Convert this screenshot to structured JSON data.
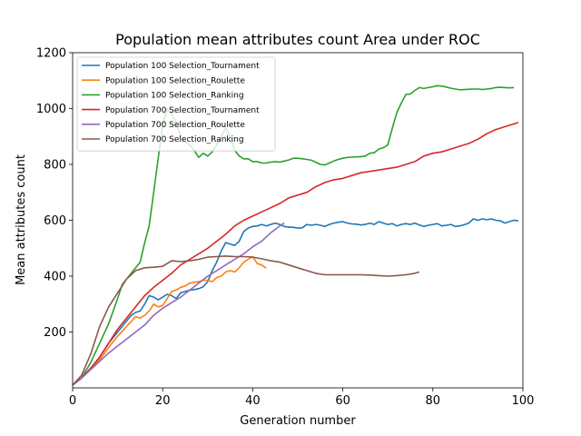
{
  "chart_data": {
    "type": "line",
    "title": "Population mean attributes count Area under ROC",
    "xlabel": "Generation number",
    "ylabel": "Mean attributes count",
    "xlim": [
      0,
      100
    ],
    "ylim": [
      0,
      1200
    ],
    "xticks": [
      0,
      20,
      40,
      60,
      80,
      100
    ],
    "yticks": [
      200,
      400,
      600,
      800,
      1000,
      1200
    ],
    "legend_position": "top-left",
    "grid": false,
    "series": [
      {
        "name": "Population 100 Selection_Tournament",
        "color": "#1f77b4",
        "x": [
          0,
          2,
          4,
          6,
          8,
          10,
          12,
          13,
          14,
          15,
          16,
          17,
          18,
          19,
          20,
          21,
          22,
          23,
          24,
          25,
          26,
          27,
          28,
          29,
          30,
          31,
          32,
          33,
          34,
          35,
          36,
          37,
          38,
          39,
          40,
          41,
          42,
          43,
          44,
          45,
          46,
          47,
          48,
          49,
          50,
          51,
          52,
          53,
          54,
          55,
          56,
          57,
          58,
          59,
          60,
          61,
          62,
          63,
          64,
          65,
          66,
          67,
          68,
          69,
          70,
          71,
          72,
          73,
          74,
          75,
          76,
          77,
          78,
          79,
          80,
          81,
          82,
          83,
          84,
          85,
          86,
          87,
          88,
          89,
          90,
          91,
          92,
          93,
          94,
          95,
          96,
          97,
          98,
          99
        ],
        "y": [
          10,
          35,
          70,
          110,
          160,
          200,
          240,
          260,
          270,
          275,
          300,
          330,
          325,
          315,
          325,
          335,
          330,
          320,
          340,
          345,
          350,
          352,
          355,
          362,
          380,
          420,
          450,
          490,
          520,
          515,
          510,
          525,
          560,
          572,
          578,
          580,
          585,
          580,
          585,
          590,
          585,
          578,
          575,
          575,
          572,
          573,
          585,
          582,
          585,
          582,
          578,
          585,
          590,
          593,
          595,
          590,
          587,
          586,
          583,
          585,
          590,
          585,
          595,
          590,
          585,
          588,
          580,
          585,
          588,
          585,
          590,
          583,
          578,
          582,
          585,
          588,
          580,
          582,
          585,
          578,
          580,
          584,
          590,
          605,
          600,
          605,
          602,
          605,
          600,
          598,
          590,
          595,
          600,
          598
        ]
      },
      {
        "name": "Population 100 Selection_Roulette",
        "color": "#ff7f0e",
        "x": [
          0,
          2,
          4,
          6,
          8,
          10,
          12,
          14,
          15,
          16,
          17,
          18,
          19,
          20,
          21,
          22,
          23,
          24,
          25,
          26,
          27,
          28,
          29,
          30,
          31,
          32,
          33,
          34,
          35,
          36,
          37,
          38,
          39,
          40,
          41,
          42,
          43
        ],
        "y": [
          10,
          35,
          70,
          100,
          145,
          185,
          220,
          255,
          250,
          260,
          275,
          300,
          290,
          295,
          320,
          345,
          350,
          360,
          365,
          375,
          378,
          380,
          385,
          385,
          380,
          395,
          400,
          415,
          420,
          415,
          430,
          450,
          460,
          470,
          445,
          440,
          428
        ]
      },
      {
        "name": "Population 100 Selection_Ranking",
        "color": "#2ca02c",
        "x": [
          0,
          2,
          4,
          6,
          8,
          10,
          11,
          12,
          13,
          14,
          15,
          16,
          17,
          18,
          19,
          20,
          21,
          22,
          23,
          24,
          25,
          26,
          27,
          28,
          29,
          30,
          31,
          32,
          33,
          34,
          35,
          36,
          37,
          38,
          39,
          40,
          41,
          42,
          43,
          44,
          45,
          46,
          47,
          48,
          49,
          50,
          51,
          52,
          53,
          54,
          55,
          56,
          57,
          58,
          59,
          60,
          61,
          62,
          63,
          64,
          65,
          66,
          67,
          68,
          69,
          70,
          71,
          72,
          73,
          74,
          75,
          76,
          77,
          78,
          79,
          80,
          81,
          82,
          83,
          84,
          85,
          86,
          87,
          88,
          89,
          90,
          91,
          92,
          93,
          94,
          95,
          96,
          97,
          98
        ],
        "y": [
          10,
          35,
          90,
          160,
          230,
          320,
          370,
          390,
          410,
          430,
          450,
          520,
          580,
          700,
          820,
          940,
          1000,
          980,
          950,
          900,
          880,
          870,
          850,
          825,
          840,
          830,
          845,
          870,
          900,
          930,
          900,
          850,
          830,
          820,
          820,
          810,
          810,
          805,
          805,
          808,
          810,
          808,
          812,
          816,
          822,
          822,
          820,
          818,
          815,
          808,
          800,
          798,
          805,
          812,
          818,
          822,
          825,
          826,
          827,
          828,
          830,
          840,
          842,
          855,
          860,
          870,
          930,
          985,
          1020,
          1050,
          1052,
          1065,
          1075,
          1072,
          1075,
          1078,
          1082,
          1080,
          1077,
          1073,
          1070,
          1067,
          1068,
          1069,
          1070,
          1070,
          1068,
          1070,
          1072,
          1075,
          1076,
          1075,
          1074,
          1075
        ]
      },
      {
        "name": "Population 700 Selection_Tournament",
        "color": "#d62728",
        "x": [
          0,
          2,
          4,
          6,
          8,
          10,
          12,
          14,
          16,
          18,
          20,
          22,
          24,
          26,
          28,
          30,
          32,
          34,
          36,
          38,
          40,
          42,
          44,
          46,
          48,
          50,
          52,
          54,
          56,
          58,
          60,
          62,
          64,
          66,
          68,
          70,
          72,
          74,
          76,
          78,
          80,
          82,
          84,
          86,
          88,
          90,
          92,
          94,
          96,
          98,
          99
        ],
        "y": [
          10,
          35,
          70,
          110,
          160,
          210,
          250,
          290,
          330,
          360,
          385,
          410,
          440,
          460,
          480,
          500,
          525,
          550,
          580,
          600,
          615,
          630,
          645,
          660,
          680,
          690,
          700,
          720,
          735,
          745,
          750,
          760,
          770,
          775,
          780,
          785,
          790,
          800,
          810,
          830,
          840,
          845,
          855,
          865,
          875,
          890,
          910,
          925,
          935,
          945,
          950
        ]
      },
      {
        "name": "Population 700 Selection_Roulette",
        "color": "#9467bd",
        "x": [
          0,
          2,
          4,
          6,
          8,
          10,
          12,
          14,
          16,
          18,
          20,
          22,
          24,
          26,
          28,
          30,
          32,
          34,
          36,
          38,
          40,
          42,
          44,
          46,
          47
        ],
        "y": [
          10,
          35,
          65,
          95,
          125,
          150,
          175,
          200,
          225,
          260,
          285,
          305,
          325,
          350,
          375,
          400,
          420,
          440,
          460,
          480,
          505,
          525,
          555,
          580,
          590
        ]
      },
      {
        "name": "Population 700 Selection_Ranking",
        "color": "#8c564b",
        "x": [
          0,
          2,
          4,
          6,
          8,
          10,
          12,
          14,
          16,
          18,
          20,
          22,
          24,
          26,
          28,
          30,
          32,
          34,
          36,
          38,
          40,
          42,
          44,
          46,
          48,
          50,
          52,
          54,
          56,
          58,
          60,
          62,
          64,
          66,
          68,
          70,
          72,
          74,
          76,
          77
        ],
        "y": [
          10,
          45,
          120,
          220,
          290,
          340,
          390,
          420,
          430,
          432,
          435,
          455,
          452,
          455,
          460,
          468,
          470,
          472,
          470,
          470,
          468,
          462,
          455,
          450,
          440,
          430,
          420,
          410,
          405,
          405,
          405,
          405,
          405,
          404,
          402,
          400,
          402,
          405,
          410,
          415
        ]
      }
    ]
  }
}
